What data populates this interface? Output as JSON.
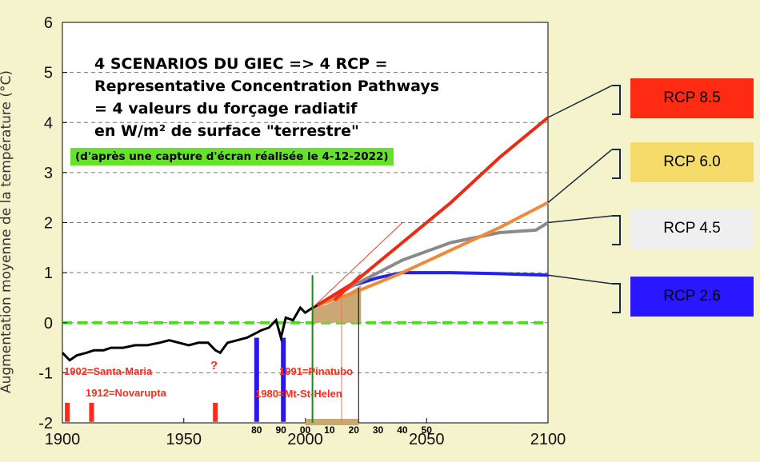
{
  "title_lines": [
    "4 SCENARIOS DU GIEC => 4 RCP =",
    "Representative Concentration Pathways",
    "= 4 valeurs du forçage radiatif",
    "en W/m² de surface \"terrestre\""
  ],
  "note": "(d'après une capture d'écran réalisée le 4-12-2022)",
  "ylabel": "Augmentation moyenne de la température (°C)",
  "rcp_boxes": [
    {
      "label": "RCP 8.5",
      "color": "#ff2a12"
    },
    {
      "label": "RCP 6.0",
      "color": "#f5dc6a"
    },
    {
      "label": "RCP 4.5",
      "color": "#efefef"
    },
    {
      "label": "RCP 2.6",
      "color": "#2b17ff"
    }
  ],
  "volcano_labels": [
    "1902=Santa-Maria",
    "1912=Novarupta",
    "?",
    "1991=Pinatubo",
    "1980=Mt-St-Helen"
  ],
  "decade_labels": [
    "80",
    "90",
    "00",
    "10",
    "20",
    "30",
    "40",
    "50"
  ],
  "chart_data": {
    "type": "line",
    "xlabel": "",
    "ylabel": "Augmentation moyenne de la température (°C)",
    "xlim": [
      1900,
      2100
    ],
    "ylim": [
      -2,
      6
    ],
    "x_ticks": [
      1900,
      1950,
      2000,
      2050,
      2100
    ],
    "y_ticks": [
      -2,
      -1,
      0,
      1,
      2,
      3,
      4,
      5,
      6
    ],
    "grid": "horizontal dashed",
    "baseline": {
      "y": 0,
      "color": "#4cdc1c"
    },
    "historical": {
      "color": "#000000",
      "x": [
        1900,
        1903,
        1906,
        1910,
        1913,
        1917,
        1920,
        1925,
        1930,
        1935,
        1940,
        1944,
        1948,
        1952,
        1956,
        1960,
        1963,
        1965,
        1968,
        1972,
        1976,
        1980,
        1982,
        1985,
        1988,
        1990,
        1992,
        1995,
        1998,
        2000,
        2003,
        2005
      ],
      "y": [
        -0.6,
        -0.75,
        -0.65,
        -0.6,
        -0.55,
        -0.55,
        -0.5,
        -0.5,
        -0.45,
        -0.45,
        -0.4,
        -0.35,
        -0.4,
        -0.45,
        -0.4,
        -0.4,
        -0.55,
        -0.6,
        -0.4,
        -0.35,
        -0.3,
        -0.2,
        -0.15,
        -0.1,
        0.05,
        -0.3,
        0.1,
        0.05,
        0.3,
        0.2,
        0.3,
        0.35
      ]
    },
    "series": [
      {
        "name": "RCP 8.5",
        "color": "#ee2a12",
        "x": [
          2005,
          2020,
          2040,
          2060,
          2080,
          2100
        ],
        "y": [
          0.35,
          0.8,
          1.6,
          2.4,
          3.3,
          4.1
        ]
      },
      {
        "name": "RCP 6.0",
        "color": "#f08a3a",
        "x": [
          2005,
          2020,
          2040,
          2060,
          2080,
          2100
        ],
        "y": [
          0.35,
          0.6,
          1.0,
          1.45,
          1.9,
          2.4
        ]
      },
      {
        "name": "RCP 4.5",
        "color": "#8a8a8a",
        "x": [
          2005,
          2020,
          2040,
          2060,
          2080,
          2095,
          2100
        ],
        "y": [
          0.35,
          0.75,
          1.25,
          1.6,
          1.8,
          1.85,
          2.0
        ]
      },
      {
        "name": "RCP 2.6",
        "color": "#2222ee",
        "x": [
          2005,
          2020,
          2030,
          2040,
          2060,
          2080,
          2100
        ],
        "y": [
          0.35,
          0.75,
          0.9,
          1.0,
          1.0,
          0.98,
          0.95
        ]
      }
    ],
    "eruptions": [
      {
        "year": 1902,
        "color": "#ff2a1a"
      },
      {
        "year": 1912,
        "color": "#ff2a1a"
      },
      {
        "year": 1963,
        "color": "#ff2a1a"
      },
      {
        "year": 1980,
        "color": "#2a17ee"
      },
      {
        "year": 1991,
        "color": "#2a17ee"
      }
    ]
  }
}
